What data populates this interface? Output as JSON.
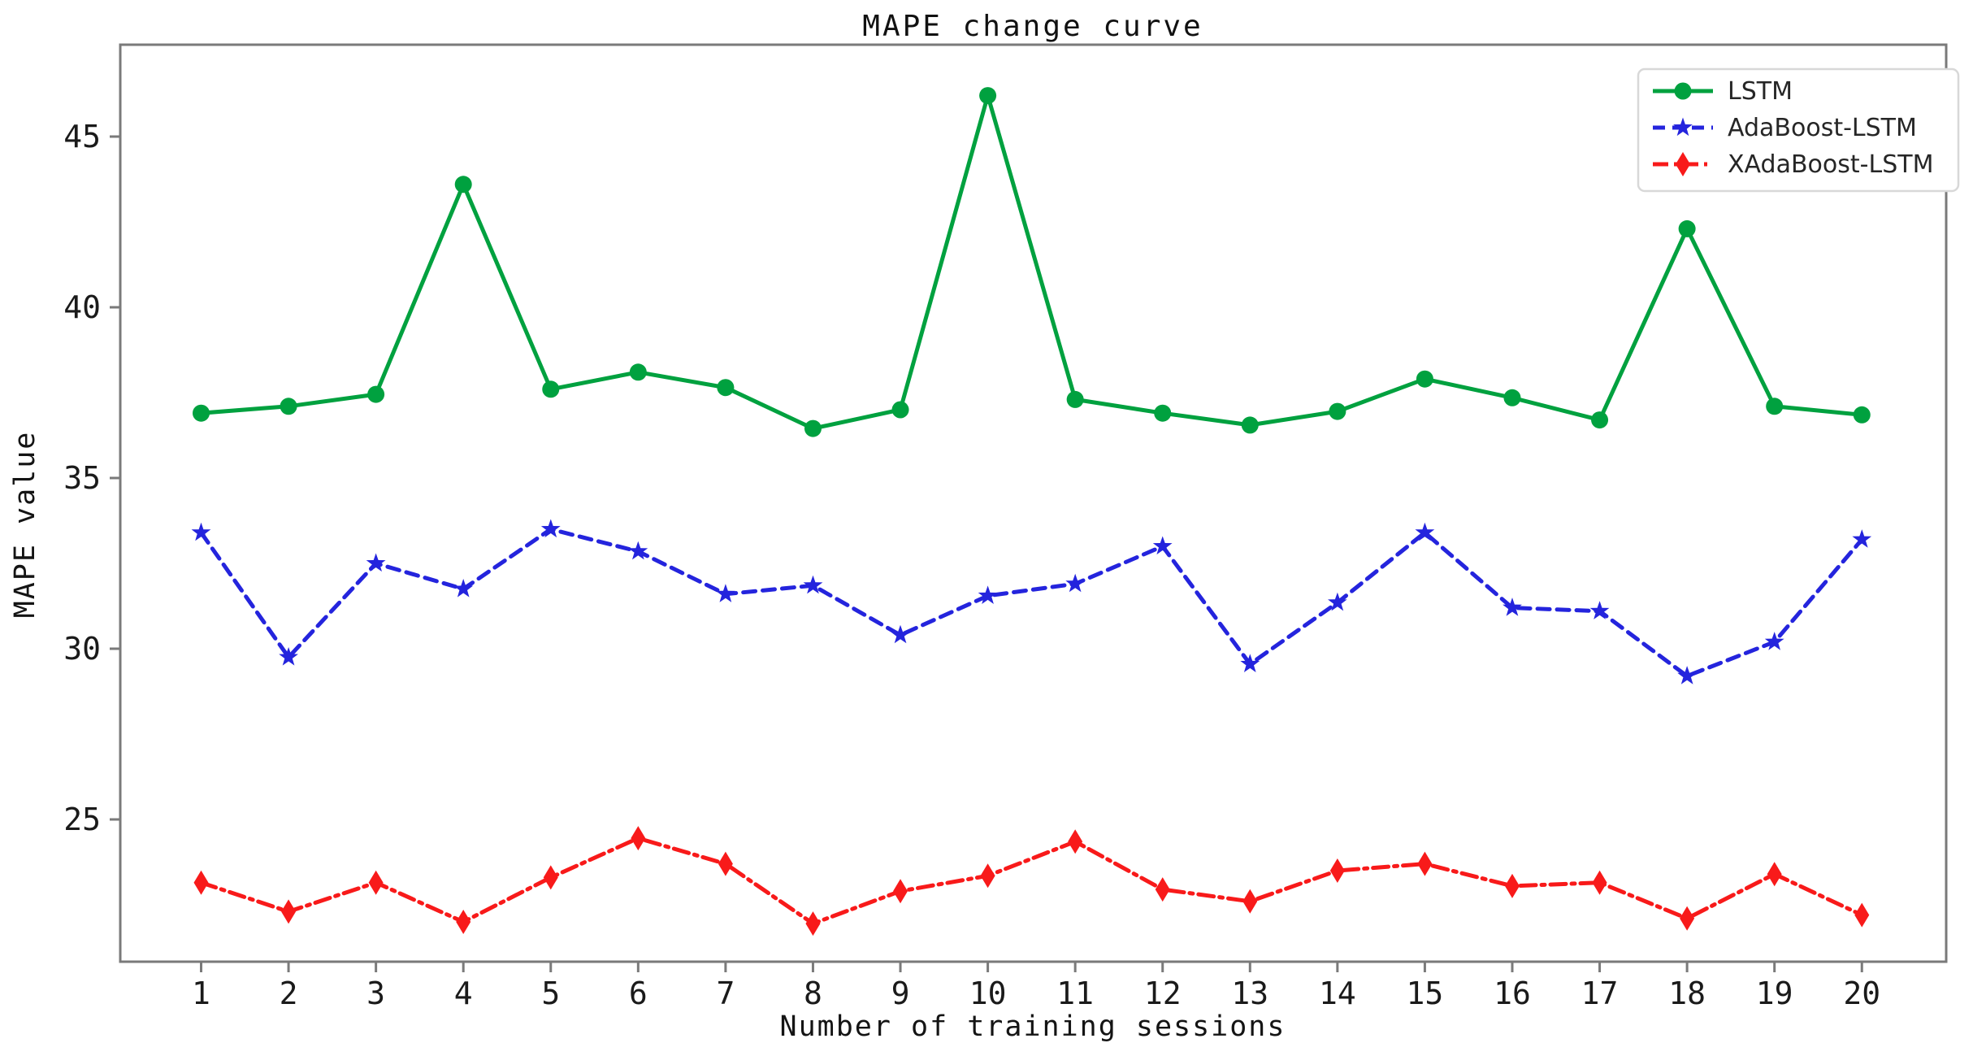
{
  "chart_data": {
    "type": "line",
    "title": "MAPE change curve",
    "xlabel": "Number of training sessions",
    "ylabel": "MAPE value",
    "x": [
      1,
      2,
      3,
      4,
      5,
      6,
      7,
      8,
      9,
      10,
      11,
      12,
      13,
      14,
      15,
      16,
      17,
      18,
      19,
      20
    ],
    "xticks": [
      "1",
      "2",
      "3",
      "4",
      "5",
      "6",
      "7",
      "8",
      "9",
      "10",
      "11",
      "12",
      "13",
      "14",
      "15",
      "16",
      "17",
      "18",
      "19",
      "20"
    ],
    "yticks": [
      25,
      30,
      35,
      40,
      45
    ],
    "ylim": [
      20.8,
      47.7
    ],
    "xlim": [
      0.08,
      20.96
    ],
    "grid": false,
    "legend": {
      "position": "upper right",
      "entries": [
        "LSTM",
        "AdaBoost-LSTM",
        "XAdaBoost-LSTM"
      ]
    },
    "colors": {
      "lstm_green": "#00a13f",
      "adaboost_blue": "#2424dd",
      "xadaboost_red": "#f81a1a",
      "spine_gray": "#7a7a7a",
      "legend_border": "#d8d8d8"
    },
    "series": [
      {
        "name": "LSTM",
        "color": "#00a13f",
        "linestyle": "solid",
        "marker": "circle",
        "values": [
          36.9,
          37.1,
          37.45,
          43.6,
          37.6,
          38.1,
          37.65,
          36.45,
          37.0,
          46.2,
          37.3,
          36.9,
          36.55,
          36.95,
          37.9,
          37.35,
          36.7,
          42.3,
          37.1,
          36.85
        ]
      },
      {
        "name": "AdaBoost-LSTM",
        "color": "#2424dd",
        "linestyle": "dashed",
        "marker": "star",
        "values": [
          33.4,
          29.75,
          32.5,
          31.75,
          33.5,
          32.85,
          31.6,
          31.85,
          30.4,
          31.55,
          31.9,
          33.0,
          29.55,
          31.35,
          33.4,
          31.2,
          31.1,
          29.2,
          30.2,
          33.2
        ]
      },
      {
        "name": "XAdaBoost-LSTM",
        "color": "#f81a1a",
        "linestyle": "dashdot",
        "marker": "thin-diamond",
        "values": [
          23.15,
          22.3,
          23.15,
          22.0,
          23.3,
          24.45,
          23.7,
          21.95,
          22.9,
          23.35,
          24.35,
          22.95,
          22.6,
          23.5,
          23.7,
          23.05,
          23.15,
          22.1,
          23.4,
          22.2
        ]
      }
    ]
  }
}
